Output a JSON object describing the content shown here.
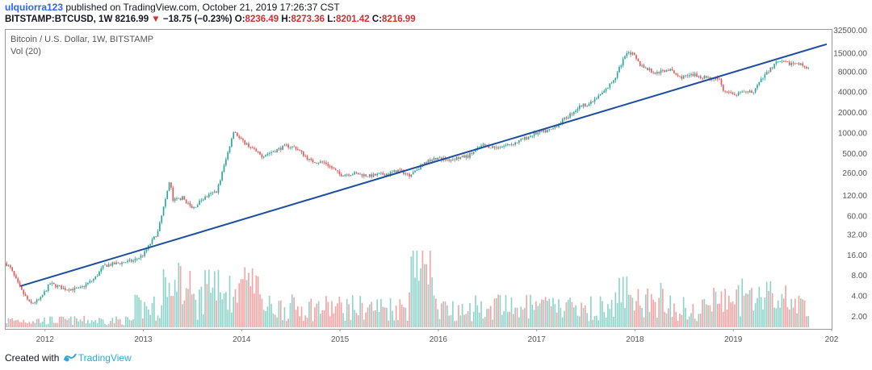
{
  "header": {
    "username": "ulquiorra123",
    "published_text": "published on TradingView.com, October 21, 2019 17:26:37 CST",
    "symbol": "BITSTAMP:BTCUSD, 1W",
    "last": "8216.99",
    "down_arrow": "▼",
    "change": "−18.75 (−0.23%)",
    "o_label": "O:",
    "o_value": "8236.49",
    "h_label": "H:",
    "h_value": "8273.36",
    "l_label": "L:",
    "l_value": "8201.42",
    "c_label": "C:",
    "c_value": "8216.99"
  },
  "legend": {
    "series": "Bitcoin / U.S. Dollar, 1W, BITSTAMP",
    "volume": "Vol (20)"
  },
  "footer": {
    "created_with": "Created with",
    "brand": "TradingView",
    "logo_icon": "tradingview-logo-icon"
  },
  "colors": {
    "up": "#26a69a",
    "down": "#ef5350",
    "vol_up": "#8ed3c9",
    "vol_down": "#f5a3a3",
    "trendline": "#1d4e9e",
    "axis_text": "#555555"
  },
  "chart_data": {
    "type": "line",
    "scale": "log",
    "title": "Bitcoin / U.S. Dollar, 1W, BITSTAMP",
    "x_ticks": [
      "2012",
      "2013",
      "2014",
      "2015",
      "2016",
      "2017",
      "2018",
      "2019",
      "202"
    ],
    "y_ticks": [
      "32500.00",
      "15000.00",
      "8000.00",
      "4000.00",
      "2000.00",
      "1000.00",
      "500.00",
      "260.00",
      "120.00",
      "60.00",
      "32.00",
      "16.00",
      "8.00",
      "4.00",
      "2.00"
    ],
    "y_tick_values": [
      32500,
      15000,
      8000,
      4000,
      2000,
      1000,
      500,
      260,
      120,
      60,
      32,
      16,
      8,
      4,
      2
    ],
    "x_range": [
      2011.6,
      2020.0
    ],
    "price_anchors": [
      [
        2011.6,
        12
      ],
      [
        2011.65,
        10
      ],
      [
        2011.75,
        5
      ],
      [
        2011.85,
        3
      ],
      [
        2011.95,
        3.5
      ],
      [
        2012.05,
        6
      ],
      [
        2012.2,
        5
      ],
      [
        2012.35,
        5
      ],
      [
        2012.5,
        7
      ],
      [
        2012.6,
        11
      ],
      [
        2012.75,
        12
      ],
      [
        2012.9,
        13
      ],
      [
        2013.0,
        16
      ],
      [
        2013.15,
        35
      ],
      [
        2013.27,
        200
      ],
      [
        2013.3,
        100
      ],
      [
        2013.4,
        110
      ],
      [
        2013.5,
        75
      ],
      [
        2013.6,
        105
      ],
      [
        2013.75,
        140
      ],
      [
        2013.85,
        450
      ],
      [
        2013.92,
        1100
      ],
      [
        2013.98,
        800
      ],
      [
        2014.1,
        600
      ],
      [
        2014.2,
        450
      ],
      [
        2014.35,
        550
      ],
      [
        2014.45,
        640
      ],
      [
        2014.55,
        600
      ],
      [
        2014.7,
        380
      ],
      [
        2014.85,
        360
      ],
      [
        2015.0,
        240
      ],
      [
        2015.15,
        250
      ],
      [
        2015.3,
        230
      ],
      [
        2015.5,
        250
      ],
      [
        2015.6,
        280
      ],
      [
        2015.7,
        235
      ],
      [
        2015.82,
        320
      ],
      [
        2015.95,
        430
      ],
      [
        2016.1,
        400
      ],
      [
        2016.3,
        450
      ],
      [
        2016.45,
        650
      ],
      [
        2016.6,
        600
      ],
      [
        2016.8,
        720
      ],
      [
        2016.98,
        960
      ],
      [
        2017.15,
        1100
      ],
      [
        2017.35,
        1900
      ],
      [
        2017.45,
        2500
      ],
      [
        2017.55,
        2700
      ],
      [
        2017.7,
        4200
      ],
      [
        2017.8,
        6500
      ],
      [
        2017.92,
        16000
      ],
      [
        2017.98,
        14000
      ],
      [
        2018.05,
        10000
      ],
      [
        2018.2,
        7500
      ],
      [
        2018.35,
        8500
      ],
      [
        2018.45,
        6500
      ],
      [
        2018.6,
        7000
      ],
      [
        2018.75,
        6400
      ],
      [
        2018.85,
        6300
      ],
      [
        2018.9,
        4000
      ],
      [
        2019.0,
        3600
      ],
      [
        2019.2,
        4000
      ],
      [
        2019.35,
        8000
      ],
      [
        2019.45,
        11000
      ],
      [
        2019.55,
        10500
      ],
      [
        2019.7,
        10000
      ],
      [
        2019.78,
        8200
      ]
    ],
    "last_price": 8216.99,
    "trendline": [
      [
        2011.75,
        5.5
      ],
      [
        2019.95,
        20000
      ]
    ],
    "volume_style": "histogram, relative heights only, no scale shown"
  }
}
